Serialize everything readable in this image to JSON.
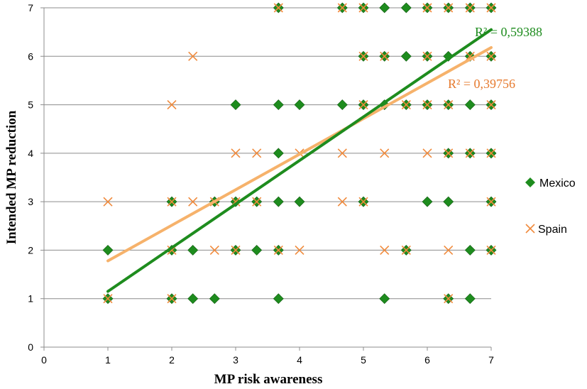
{
  "chart_data": {
    "type": "scatter",
    "title": "",
    "xlabel": "MP risk awareness",
    "ylabel": "Intended  MP reduction",
    "xlim": [
      0,
      7
    ],
    "ylim": [
      0,
      7
    ],
    "x_ticks": [
      "0",
      "1",
      "2",
      "3",
      "4",
      "5",
      "6",
      "7"
    ],
    "y_ticks": [
      "0",
      "1",
      "2",
      "3",
      "4",
      "5",
      "6",
      "7"
    ],
    "grid": "horizontal",
    "legend_position": "right",
    "series": [
      {
        "name": "Mexico",
        "marker": "diamond",
        "color": "#1e8c1e",
        "points": [
          [
            3.67,
            7
          ],
          [
            4.67,
            7
          ],
          [
            5,
            7
          ],
          [
            5.33,
            7
          ],
          [
            5.67,
            7
          ],
          [
            6,
            7
          ],
          [
            6.33,
            7
          ],
          [
            6.67,
            7
          ],
          [
            7,
            7
          ],
          [
            5,
            6
          ],
          [
            5.33,
            6
          ],
          [
            5.67,
            6
          ],
          [
            6,
            6
          ],
          [
            6.33,
            6
          ],
          [
            6.67,
            6
          ],
          [
            7,
            6
          ],
          [
            3,
            5
          ],
          [
            3.67,
            5
          ],
          [
            4,
            5
          ],
          [
            4.67,
            5
          ],
          [
            5,
            5
          ],
          [
            5.33,
            5
          ],
          [
            5.67,
            5
          ],
          [
            6,
            5
          ],
          [
            6.33,
            5
          ],
          [
            6.67,
            5
          ],
          [
            7,
            5
          ],
          [
            3.67,
            4
          ],
          [
            6.33,
            4
          ],
          [
            6.67,
            4
          ],
          [
            7,
            4
          ],
          [
            2,
            3
          ],
          [
            2.67,
            3
          ],
          [
            3,
            3
          ],
          [
            3.33,
            3
          ],
          [
            3.67,
            3
          ],
          [
            4,
            3
          ],
          [
            5,
            3
          ],
          [
            6,
            3
          ],
          [
            6.33,
            3
          ],
          [
            7,
            3
          ],
          [
            1,
            2
          ],
          [
            2,
            2
          ],
          [
            2.33,
            2
          ],
          [
            3,
            2
          ],
          [
            3.33,
            2
          ],
          [
            3.67,
            2
          ],
          [
            5.67,
            2
          ],
          [
            6.67,
            2
          ],
          [
            7,
            2
          ],
          [
            1,
            1
          ],
          [
            2,
            1
          ],
          [
            2.33,
            1
          ],
          [
            2.67,
            1
          ],
          [
            3.67,
            1
          ],
          [
            5.33,
            1
          ],
          [
            6.33,
            1
          ],
          [
            6.67,
            1
          ]
        ],
        "trendline": {
          "x": [
            1,
            7
          ],
          "y": [
            1.15,
            6.55
          ]
        },
        "r2_label": "R² = 0,59388"
      },
      {
        "name": "Spain",
        "marker": "x",
        "color": "#f08a3c",
        "points": [
          [
            3.67,
            7
          ],
          [
            4.67,
            7
          ],
          [
            5,
            7
          ],
          [
            6,
            7
          ],
          [
            6.33,
            7
          ],
          [
            6.67,
            7
          ],
          [
            7,
            7
          ],
          [
            2.33,
            6
          ],
          [
            5,
            6
          ],
          [
            5.33,
            6
          ],
          [
            6,
            6
          ],
          [
            6.67,
            6
          ],
          [
            7,
            6
          ],
          [
            2,
            5
          ],
          [
            5,
            5
          ],
          [
            5.67,
            5
          ],
          [
            6,
            5
          ],
          [
            6.33,
            5
          ],
          [
            7,
            5
          ],
          [
            3,
            4
          ],
          [
            3.33,
            4
          ],
          [
            4,
            4
          ],
          [
            4.67,
            4
          ],
          [
            5.33,
            4
          ],
          [
            6,
            4
          ],
          [
            6.33,
            4
          ],
          [
            6.67,
            4
          ],
          [
            7,
            4
          ],
          [
            1,
            3
          ],
          [
            2,
            3
          ],
          [
            2.33,
            3
          ],
          [
            2.67,
            3
          ],
          [
            3,
            3
          ],
          [
            3.33,
            3
          ],
          [
            4.67,
            3
          ],
          [
            5,
            3
          ],
          [
            7,
            3
          ],
          [
            2,
            2
          ],
          [
            2.67,
            2
          ],
          [
            3,
            2
          ],
          [
            3.67,
            2
          ],
          [
            4,
            2
          ],
          [
            5.33,
            2
          ],
          [
            5.67,
            2
          ],
          [
            6.33,
            2
          ],
          [
            7,
            2
          ],
          [
            1,
            1
          ],
          [
            2,
            1
          ],
          [
            6.33,
            1
          ]
        ],
        "trendline": {
          "x": [
            1,
            7
          ],
          "y": [
            1.78,
            6.18
          ]
        },
        "r2_label": "R² = 0,39756"
      }
    ]
  }
}
